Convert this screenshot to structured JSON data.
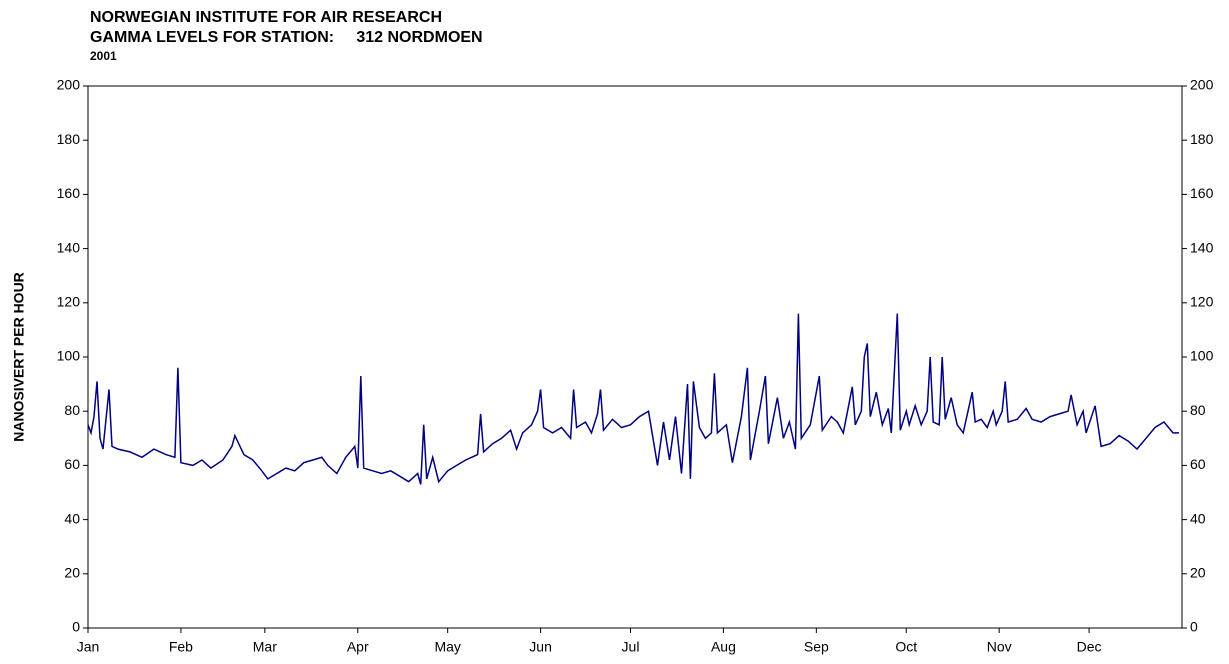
{
  "chart_data": {
    "type": "line",
    "title": "NORWEGIAN INSTITUTE FOR AIR RESEARCH",
    "subtitle": "GAMMA LEVELS FOR STATION:     312 NORDMOEN",
    "year": "2001",
    "y_label": "NANOSIVERT PER HOUR",
    "x": [
      0,
      1,
      2,
      3,
      4,
      5,
      7,
      8,
      10,
      14,
      18,
      22,
      26,
      29,
      30,
      31,
      35,
      38,
      41,
      45,
      48,
      49,
      52,
      55,
      58,
      60,
      63,
      66,
      69,
      72,
      75,
      78,
      80,
      83,
      86,
      89,
      90,
      91,
      92,
      95,
      98,
      101,
      104,
      107,
      110,
      111,
      112,
      113,
      115,
      117,
      120,
      123,
      126,
      130,
      131,
      132,
      135,
      138,
      141,
      143,
      145,
      148,
      150,
      151,
      152,
      155,
      158,
      161,
      162,
      163,
      166,
      168,
      170,
      171,
      172,
      175,
      178,
      181,
      184,
      187,
      190,
      192,
      194,
      196,
      198,
      200,
      201,
      202,
      204,
      206,
      208,
      209,
      210,
      213,
      215,
      218,
      220,
      221,
      224,
      226,
      227,
      230,
      232,
      234,
      236,
      237,
      238,
      241,
      244,
      245,
      248,
      250,
      252,
      255,
      256,
      258,
      259,
      260,
      261,
      263,
      265,
      267,
      268,
      270,
      271,
      273,
      274,
      276,
      278,
      280,
      281,
      282,
      284,
      285,
      286,
      288,
      290,
      292,
      295,
      296,
      298,
      300,
      302,
      303,
      305,
      306,
      307,
      310,
      313,
      315,
      318,
      321,
      324,
      327,
      328,
      330,
      332,
      333,
      336,
      338,
      341,
      344,
      347,
      350,
      353,
      356,
      359,
      362,
      364
    ],
    "series": [
      {
        "name": "312 NORDMOEN",
        "color": "#000080",
        "values": [
          75,
          72,
          78,
          91,
          70,
          66,
          88,
          67,
          66,
          65,
          63,
          66,
          64,
          63,
          96,
          61,
          60,
          62,
          59,
          62,
          67,
          71,
          64,
          62,
          58,
          55,
          57,
          59,
          58,
          61,
          62,
          63,
          60,
          57,
          63,
          67,
          59,
          93,
          59,
          58,
          57,
          58,
          56,
          54,
          57,
          53,
          75,
          55,
          63,
          54,
          58,
          60,
          62,
          64,
          79,
          65,
          68,
          70,
          73,
          66,
          72,
          75,
          80,
          88,
          74,
          72,
          74,
          70,
          88,
          74,
          76,
          72,
          79,
          88,
          73,
          77,
          74,
          75,
          78,
          80,
          60,
          76,
          62,
          78,
          57,
          90,
          55,
          91,
          74,
          70,
          72,
          94,
          72,
          75,
          61,
          78,
          96,
          62,
          80,
          93,
          68,
          85,
          70,
          76,
          66,
          116,
          70,
          75,
          93,
          73,
          78,
          76,
          72,
          89,
          75,
          80,
          100,
          105,
          78,
          87,
          75,
          81,
          72,
          116,
          73,
          80,
          75,
          82,
          75,
          80,
          100,
          76,
          75,
          100,
          77,
          85,
          75,
          72,
          87,
          76,
          77,
          74,
          80,
          75,
          80,
          91,
          76,
          77,
          81,
          77,
          76,
          78,
          79,
          80,
          86,
          75,
          80,
          72,
          82,
          67,
          68,
          71,
          69,
          66,
          70,
          74,
          76,
          72,
          72
        ]
      }
    ],
    "xlim": [
      0,
      365
    ],
    "xticks": [
      {
        "value": 0,
        "label": "Jan"
      },
      {
        "value": 31,
        "label": "Feb"
      },
      {
        "value": 59,
        "label": "Mar"
      },
      {
        "value": 90,
        "label": "Apr"
      },
      {
        "value": 120,
        "label": "May"
      },
      {
        "value": 151,
        "label": "Jun"
      },
      {
        "value": 181,
        "label": "Jul"
      },
      {
        "value": 212,
        "label": "Aug"
      },
      {
        "value": 243,
        "label": "Sep"
      },
      {
        "value": 273,
        "label": "Oct"
      },
      {
        "value": 304,
        "label": "Nov"
      },
      {
        "value": 334,
        "label": "Dec"
      }
    ],
    "ylim": [
      0,
      200
    ],
    "yticks": [
      0,
      20,
      40,
      60,
      80,
      100,
      120,
      140,
      160,
      180,
      200
    ],
    "right_axis": true
  }
}
